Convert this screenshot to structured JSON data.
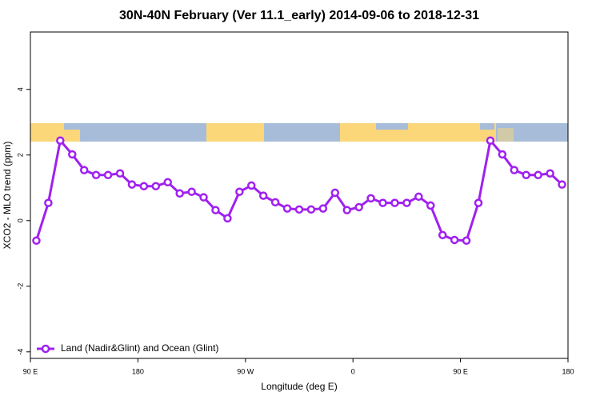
{
  "chart_data": {
    "type": "line",
    "title": "30N-40N February (Ver 11.1_early)   2014-09-06 to 2018-12-31",
    "x_label": "Longitude (deg E)",
    "y_label": "XCO2 - MLO trend (ppm)",
    "xlim": [
      90,
      540
    ],
    "ylim": [
      -4.2,
      5.75
    ],
    "xticks": [
      {
        "value": 90,
        "label": "90 E"
      },
      {
        "value": 180,
        "label": "180"
      },
      {
        "value": 270,
        "label": "90 W"
      },
      {
        "value": 360,
        "label": "0"
      },
      {
        "value": 450,
        "label": "90 E"
      },
      {
        "value": 540,
        "label": "180"
      }
    ],
    "yticks": [
      -4,
      -2,
      0,
      2,
      4
    ],
    "legend": "bottom-left",
    "x": [
      95,
      105,
      115,
      125,
      135,
      145,
      155,
      165,
      175,
      185,
      195,
      205,
      215,
      225,
      235,
      245,
      255,
      265,
      275,
      285,
      295,
      305,
      315,
      325,
      335,
      345,
      355,
      365,
      375,
      385,
      395,
      405,
      415,
      425,
      435,
      445,
      455,
      465,
      475,
      485,
      495,
      505,
      515,
      525,
      535
    ],
    "series": [
      {
        "name": "Land (Nadir&Glint) and Ocean (Glint)",
        "color": "#a020f0",
        "values": [
          -0.61,
          0.54,
          2.44,
          2.02,
          1.54,
          1.39,
          1.39,
          1.44,
          1.1,
          1.05,
          1.05,
          1.17,
          0.83,
          0.88,
          0.71,
          0.32,
          0.07,
          0.88,
          1.07,
          0.76,
          0.56,
          0.37,
          0.34,
          0.34,
          0.37,
          0.85,
          0.32,
          0.41,
          0.68,
          0.54,
          0.54,
          0.54,
          0.73,
          0.46,
          -0.44,
          -0.59,
          -0.61,
          0.54,
          2.44,
          2.02,
          1.54,
          1.39,
          1.39,
          1.44,
          1.1
        ]
      }
    ]
  }
}
